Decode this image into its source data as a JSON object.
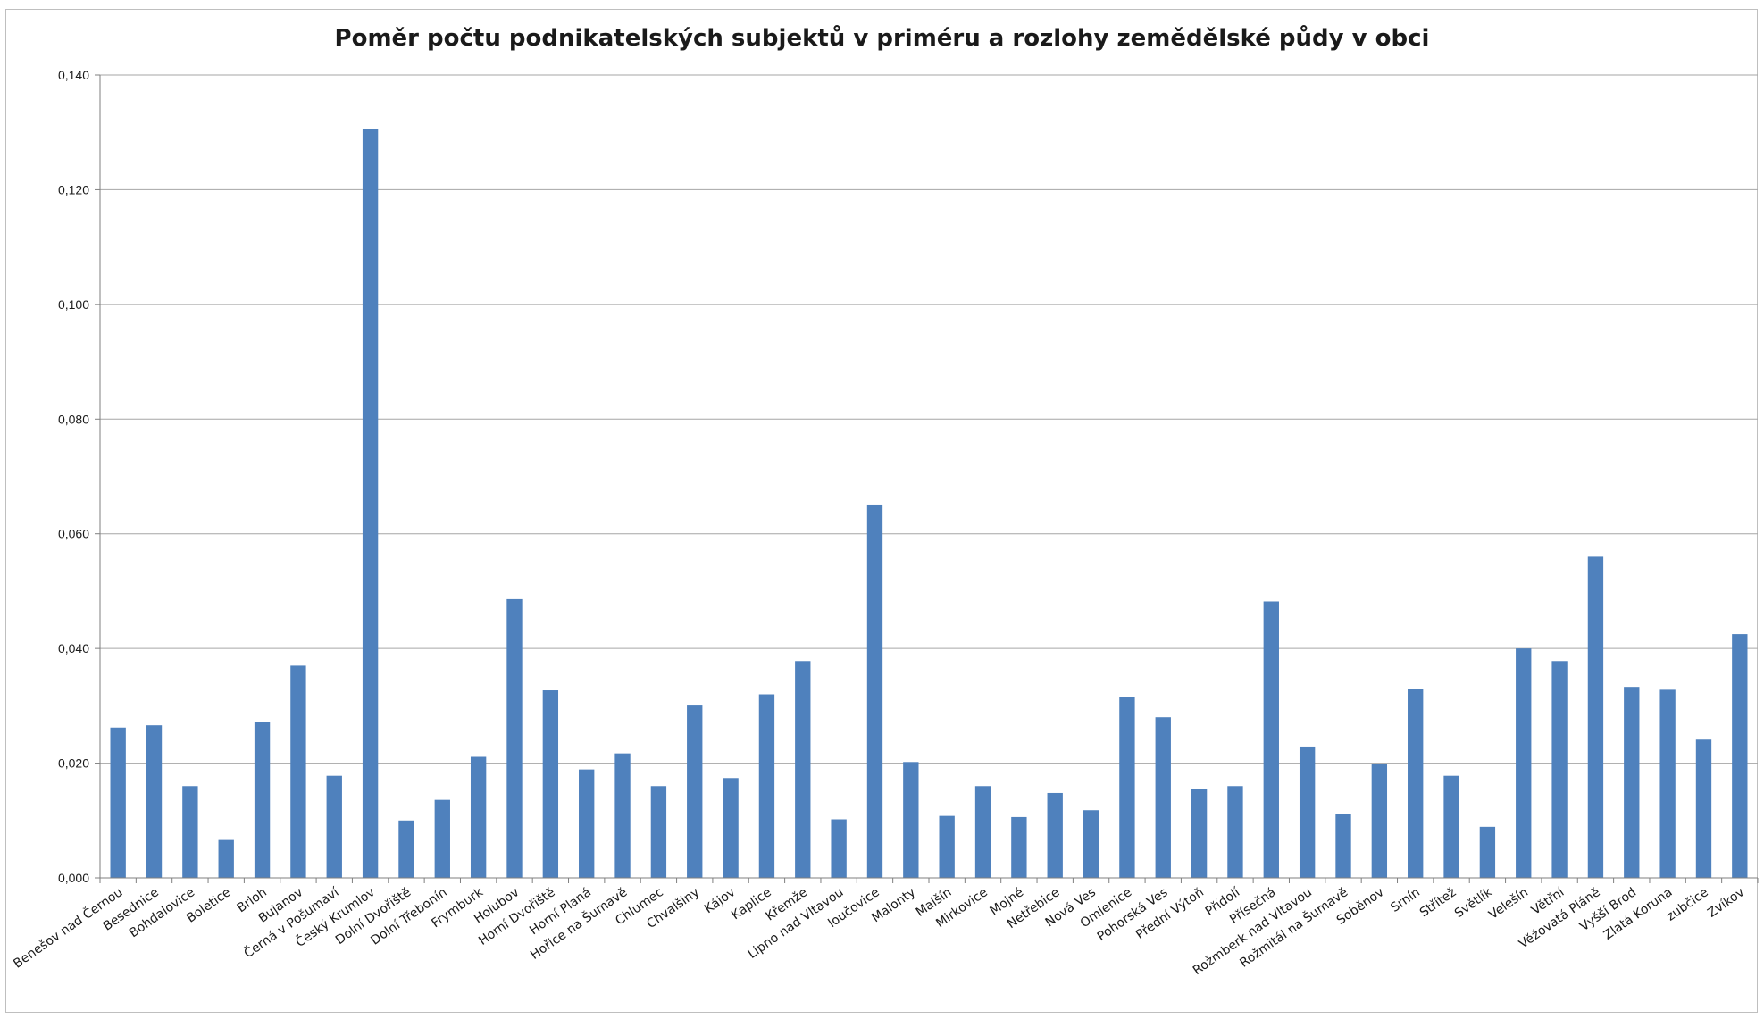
{
  "chart_data": {
    "type": "bar",
    "title": "Poměr počtu podnikatelských subjektů v priméru a rozlohy zemědělské půdy v obci",
    "xlabel": "",
    "ylabel": "",
    "ylim": [
      0,
      0.14
    ],
    "yticks": [
      "0,000",
      "0,020",
      "0,040",
      "0,060",
      "0,080",
      "0,100",
      "0,120",
      "0,140"
    ],
    "grid": true,
    "legend": "none",
    "bar_color": "#4f81bd",
    "grid_color": "#a6a6a6",
    "categories": [
      "Benešov nad Černou",
      "Besednice",
      "Bohdalovice",
      "Boletice",
      "Brloh",
      "Bujanov",
      "Černá v Pošumaví",
      "Český Krumlov",
      "Dolní Dvořiště",
      "Dolní Třebonín",
      "Frymburk",
      "Holubov",
      "Horní Dvořiště",
      "Horní Planá",
      "Hořice na Šumavě",
      "Chlumec",
      "Chvalšiny",
      "Kájov",
      "Kaplice",
      "Křemže",
      "Lipno nad Vltavou",
      "loučovice",
      "Malonty",
      "Malšín",
      "Mirkovice",
      "Mojné",
      "Netřebice",
      "Nová Ves",
      "Omlenice",
      "Pohorská Ves",
      "Přední Výtoň",
      "Přídolí",
      "Přísečná",
      "Rožmberk nad Vltavou",
      "Rožmitál na Šumavě",
      "Soběnov",
      "Srnín",
      "Střítež",
      "Světlík",
      "Velešín",
      "Větřní",
      "Věžovatá Pláně",
      "Vyšší Brod",
      "Zlatá Koruna",
      "zubčice",
      "Zvíkov"
    ],
    "values": [
      0.0262,
      0.0266,
      0.016,
      0.0066,
      0.0272,
      0.037,
      0.0178,
      0.1305,
      0.01,
      0.0136,
      0.0211,
      0.0486,
      0.0327,
      0.0189,
      0.0217,
      0.016,
      0.0302,
      0.0174,
      0.032,
      0.0378,
      0.0102,
      0.0651,
      0.0202,
      0.0108,
      0.016,
      0.0106,
      0.0148,
      0.0118,
      0.0315,
      0.028,
      0.0155,
      0.016,
      0.0482,
      0.0229,
      0.0111,
      0.0199,
      0.033,
      0.0178,
      0.0089,
      0.04,
      0.0378,
      0.056,
      0.0333,
      0.0328,
      0.0241,
      0.0425
    ]
  }
}
